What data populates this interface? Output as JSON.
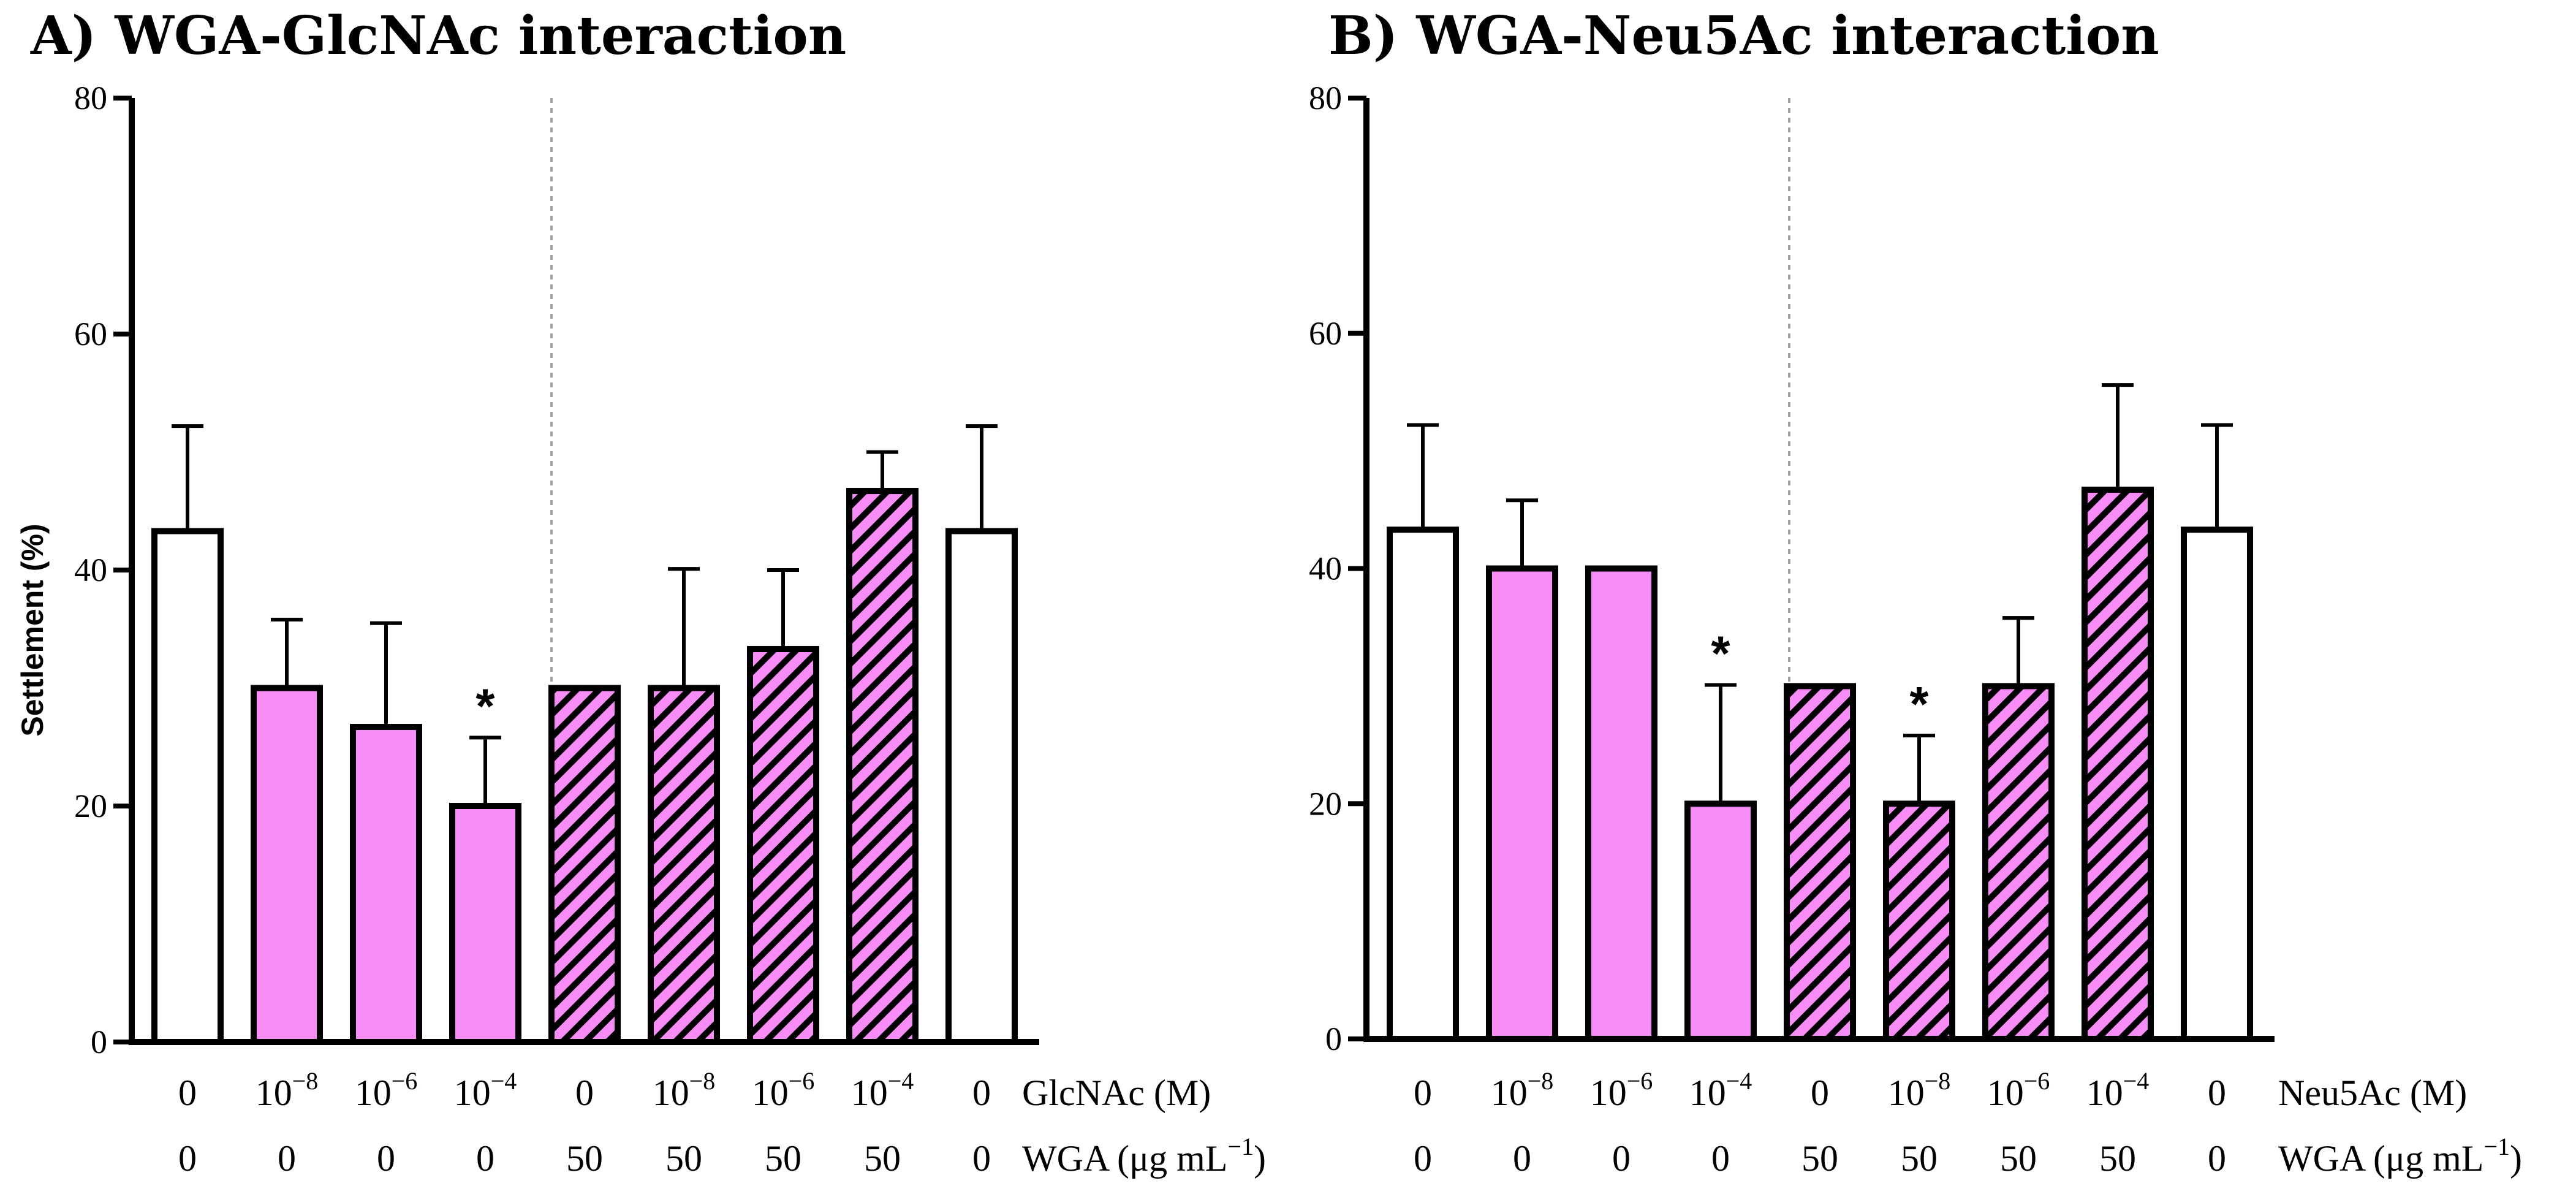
{
  "colors": {
    "pink": "#f78cf7",
    "outline": "#000000",
    "white": "#ffffff",
    "divider": "#a0a0a0"
  },
  "chart_data": [
    {
      "type": "bar",
      "title": "A) WGA-GlcNAc interaction",
      "ylabel": "Settlement (%)",
      "ylim": [
        0,
        80
      ],
      "yticks": [
        "0",
        "20",
        "40",
        "60",
        "80"
      ],
      "row1": {
        "label": "GlcNAc (M)",
        "values": [
          "0",
          "10",
          "10",
          "10",
          "0",
          "10",
          "10",
          "10",
          "0"
        ],
        "exps": [
          "",
          "−8",
          "−6",
          "−4",
          "",
          "−8",
          "−6",
          "−4",
          ""
        ]
      },
      "row2": {
        "label_main": "WGA (μg mL",
        "label_exp": "−1",
        "label_close": ")",
        "values": [
          "0",
          "0",
          "0",
          "0",
          "50",
          "50",
          "50",
          "50",
          "0"
        ]
      },
      "fills": [
        "white",
        "pink",
        "pink",
        "pink",
        "hatch",
        "hatch",
        "hatch",
        "hatch",
        "white"
      ],
      "values": [
        43.3,
        30,
        26.7,
        20,
        30,
        30,
        33.3,
        46.7,
        43.3
      ],
      "errors": [
        8.9,
        5.8,
        8.8,
        5.8,
        0,
        10.1,
        6.7,
        3.3,
        8.9
      ],
      "significance": [
        "",
        "",
        "",
        "*",
        "",
        "",
        "",
        "",
        ""
      ],
      "divider_after": 4
    },
    {
      "type": "bar",
      "title": "B) WGA-Neu5Ac interaction",
      "ylabel": "",
      "ylim": [
        0,
        80
      ],
      "yticks": [
        "0",
        "20",
        "40",
        "60",
        "80"
      ],
      "row1": {
        "label": "Neu5Ac (M)",
        "values": [
          "0",
          "10",
          "10",
          "10",
          "0",
          "10",
          "10",
          "10",
          "0"
        ],
        "exps": [
          "",
          "−8",
          "−6",
          "−4",
          "",
          "−8",
          "−6",
          "−4",
          ""
        ]
      },
      "row2": {
        "label_main": "WGA (μg mL",
        "label_exp": "−1",
        "label_close": ")",
        "values": [
          "0",
          "0",
          "0",
          "0",
          "50",
          "50",
          "50",
          "50",
          "0"
        ]
      },
      "fills": [
        "white",
        "pink",
        "pink",
        "pink",
        "hatch",
        "hatch",
        "hatch",
        "hatch",
        "white"
      ],
      "values": [
        43.3,
        40,
        40,
        20,
        30,
        20,
        30,
        46.7,
        43.3
      ],
      "errors": [
        8.9,
        5.8,
        0,
        10.1,
        0,
        5.8,
        5.8,
        8.9,
        8.9
      ],
      "significance": [
        "",
        "",
        "",
        "*",
        "",
        "*",
        "",
        "",
        ""
      ],
      "divider_after": 4
    }
  ]
}
